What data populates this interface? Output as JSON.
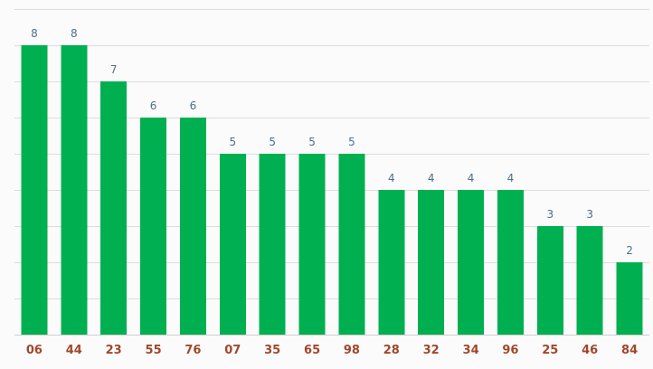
{
  "chart_data": {
    "type": "bar",
    "categories": [
      "06",
      "44",
      "23",
      "55",
      "76",
      "07",
      "35",
      "65",
      "98",
      "28",
      "32",
      "34",
      "96",
      "25",
      "46",
      "84"
    ],
    "values": [
      8,
      8,
      7,
      6,
      6,
      5,
      5,
      5,
      5,
      4,
      4,
      4,
      4,
      3,
      3,
      2
    ],
    "ylim": [
      0,
      9
    ],
    "grid": true,
    "legend": "none",
    "colors": {
      "bar": "#00b050",
      "data_label": "#4f6f86",
      "tick_label": "#a0482c",
      "grid": "#dcdcdc",
      "background": "#fbfbfb"
    }
  }
}
